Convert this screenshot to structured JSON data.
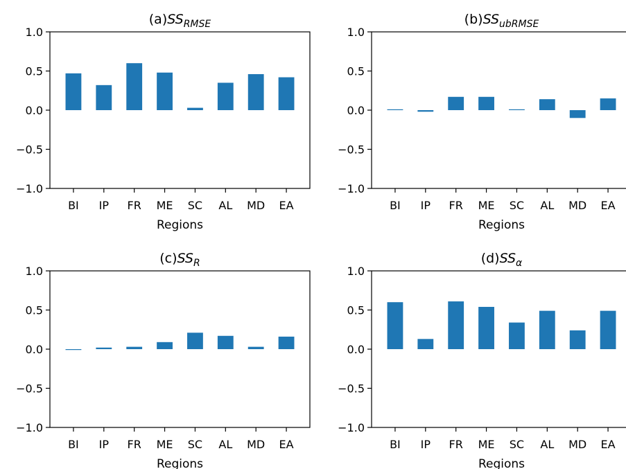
{
  "colors": {
    "bar": "#1f77b4",
    "axis": "#000000"
  },
  "chart_data": [
    {
      "type": "bar",
      "title": {
        "prefix": "(a)",
        "main": "SS",
        "sub": "RMSE"
      },
      "xlabel": "Regions",
      "ylabel": "",
      "categories": [
        "BI",
        "IP",
        "FR",
        "ME",
        "SC",
        "AL",
        "MD",
        "EA"
      ],
      "values": [
        0.47,
        0.32,
        0.6,
        0.48,
        0.03,
        0.35,
        0.46,
        0.42
      ],
      "ylim": [
        -1.0,
        1.0
      ],
      "yticks": [
        "1.0",
        "0.5",
        "0.0",
        "−0.5",
        "−1.0"
      ],
      "grid": false
    },
    {
      "type": "bar",
      "title": {
        "prefix": "(b)",
        "main": "SS",
        "sub": "ubRMSE"
      },
      "xlabel": "Regions",
      "ylabel": "",
      "categories": [
        "BI",
        "IP",
        "FR",
        "ME",
        "SC",
        "AL",
        "MD",
        "EA"
      ],
      "values": [
        0.005,
        -0.02,
        0.17,
        0.17,
        0.005,
        0.14,
        -0.1,
        0.15
      ],
      "ylim": [
        -1.0,
        1.0
      ],
      "yticks": [
        "1.0",
        "0.5",
        "0.0",
        "−0.5",
        "−1.0"
      ],
      "grid": false
    },
    {
      "type": "bar",
      "title": {
        "prefix": "(c)",
        "main": "SS",
        "sub": "R"
      },
      "xlabel": "Regions",
      "ylabel": "",
      "categories": [
        "BI",
        "IP",
        "FR",
        "ME",
        "SC",
        "AL",
        "MD",
        "EA"
      ],
      "values": [
        -0.005,
        0.02,
        0.03,
        0.09,
        0.21,
        0.17,
        0.03,
        0.16
      ],
      "ylim": [
        -1.0,
        1.0
      ],
      "yticks": [
        "1.0",
        "0.5",
        "0.0",
        "−0.5",
        "−1.0"
      ],
      "grid": false
    },
    {
      "type": "bar",
      "title": {
        "prefix": "(d)",
        "main": "SS",
        "sub": "α"
      },
      "xlabel": "Regions",
      "ylabel": "",
      "categories": [
        "BI",
        "IP",
        "FR",
        "ME",
        "SC",
        "AL",
        "MD",
        "EA"
      ],
      "values": [
        0.6,
        0.13,
        0.61,
        0.54,
        0.34,
        0.49,
        0.24,
        0.49
      ],
      "ylim": [
        -1.0,
        1.0
      ],
      "yticks": [
        "1.0",
        "0.5",
        "0.0",
        "−0.5",
        "−1.0"
      ],
      "grid": false
    }
  ]
}
